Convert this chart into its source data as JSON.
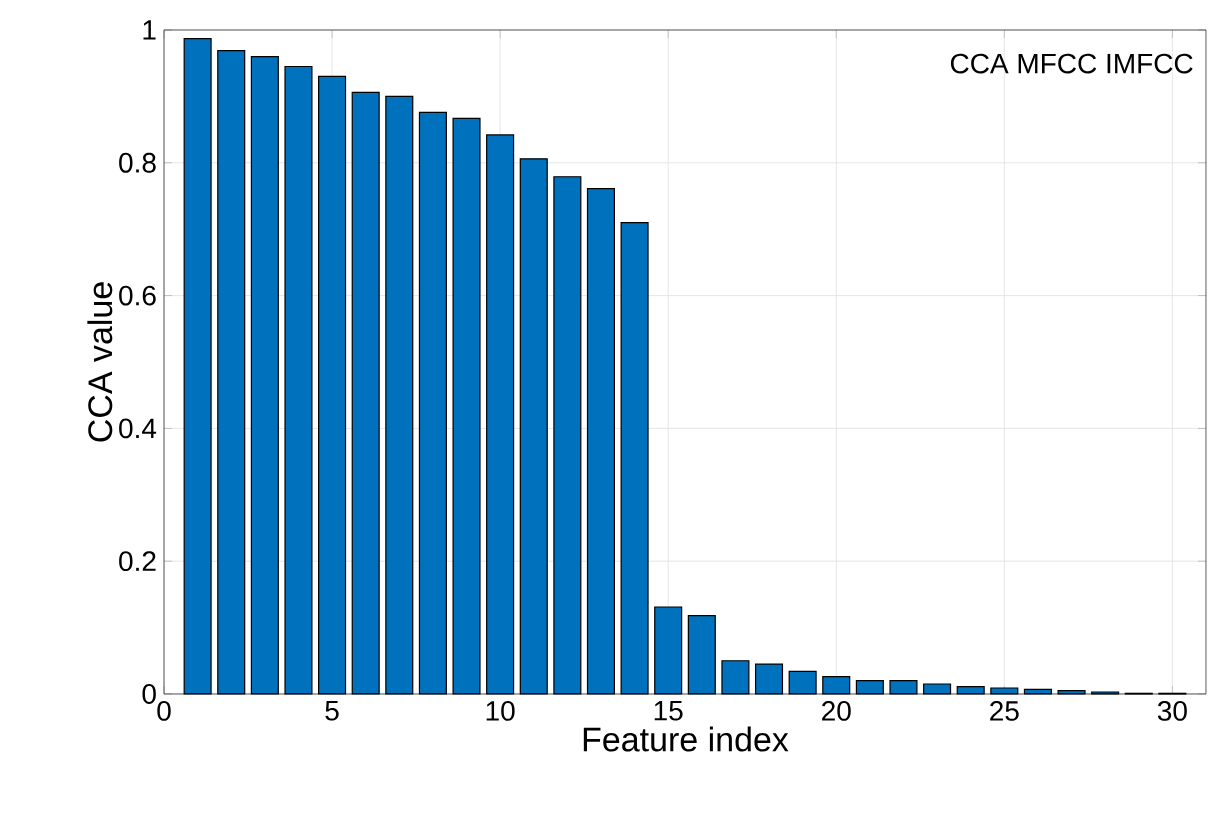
{
  "chart_data": {
    "type": "bar",
    "xlabel": "Feature index",
    "ylabel": "CCA value",
    "annotations": [
      "CCA MFCC IMFCC"
    ],
    "x": [
      1,
      2,
      3,
      4,
      5,
      6,
      7,
      8,
      9,
      10,
      11,
      12,
      13,
      14,
      15,
      16,
      17,
      18,
      19,
      20,
      21,
      22,
      23,
      24,
      25,
      26,
      27,
      28,
      29,
      30
    ],
    "values": [
      0.987,
      0.969,
      0.96,
      0.945,
      0.93,
      0.906,
      0.9,
      0.876,
      0.867,
      0.842,
      0.806,
      0.779,
      0.761,
      0.71,
      0.131,
      0.118,
      0.05,
      0.045,
      0.034,
      0.026,
      0.02,
      0.02,
      0.015,
      0.011,
      0.009,
      0.007,
      0.005,
      0.003,
      0.001,
      0.001
    ],
    "color": "#0072bd",
    "xlim": [
      0,
      31
    ],
    "xticks": [
      0,
      5,
      10,
      15,
      20,
      25,
      30
    ],
    "ylim": [
      0,
      1
    ],
    "yticks": [
      0,
      0.2,
      0.4,
      0.6,
      0.8,
      1
    ],
    "grid": true
  }
}
